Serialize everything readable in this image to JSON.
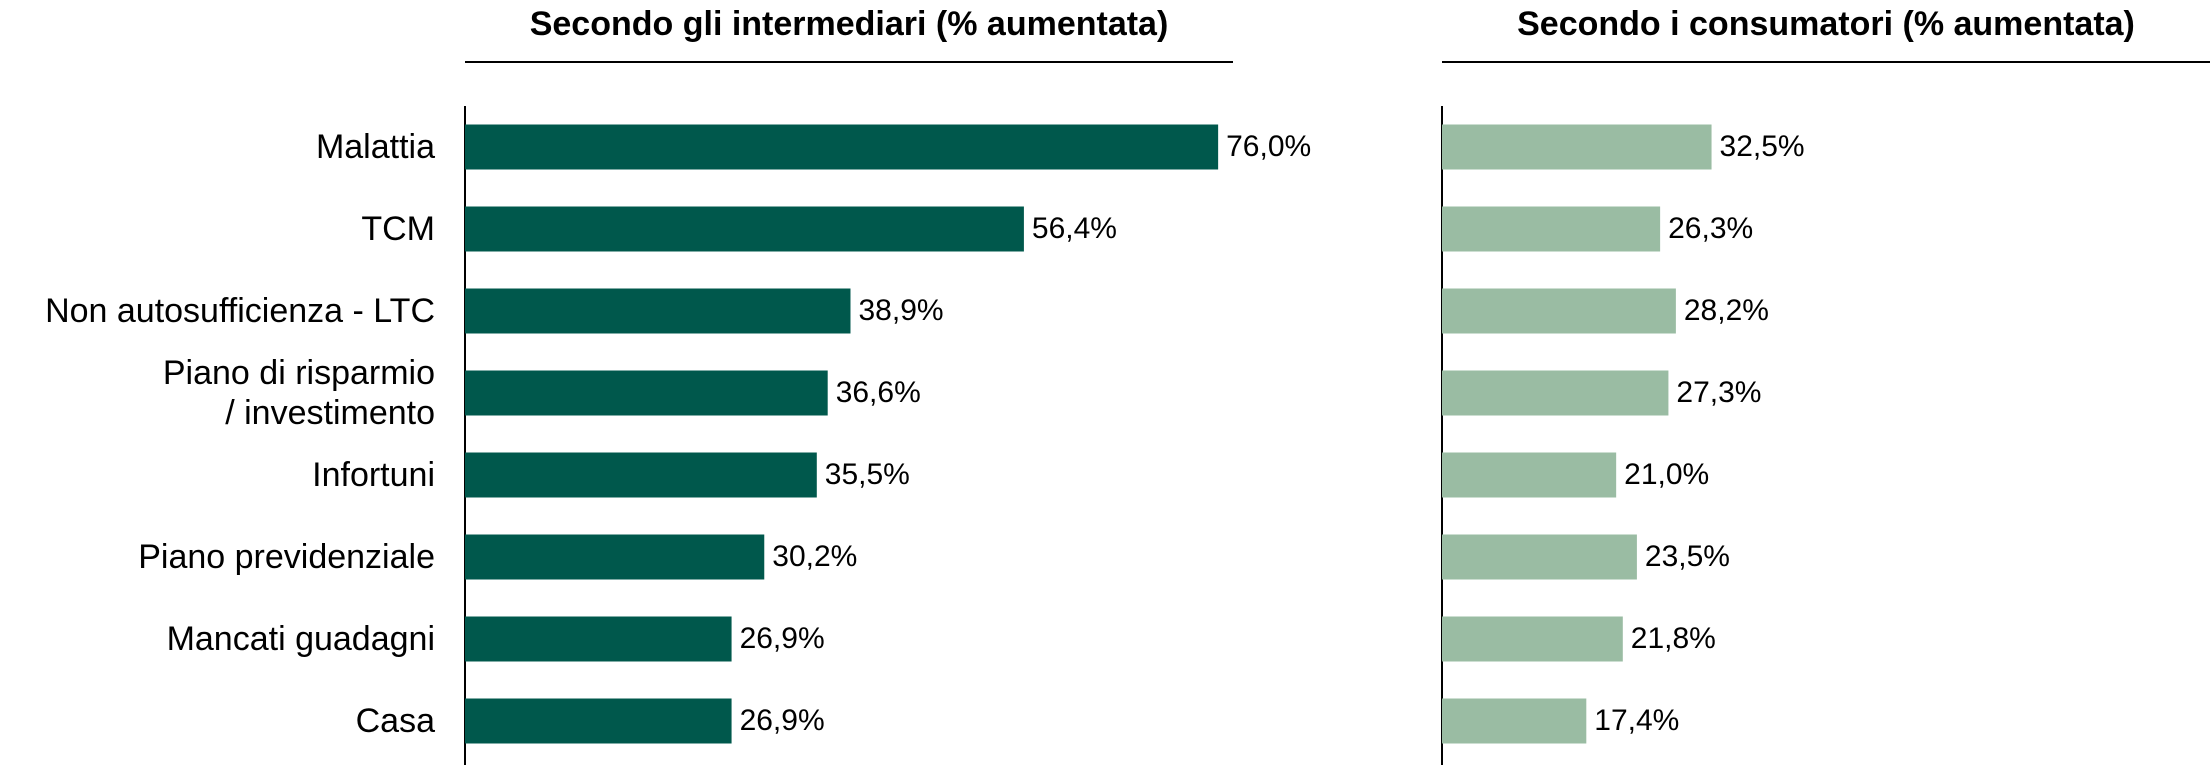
{
  "chart_data": [
    {
      "type": "bar",
      "orientation": "horizontal",
      "title": "Secondo gli intermediari (% aumentata)",
      "categories": [
        "Malattia",
        "TCM",
        "Non autosufficienza - LTC",
        "Piano di risparmio\n/ investimento",
        "Infortuni",
        "Piano previdenziale",
        "Mancati guadagni",
        "Casa"
      ],
      "values": [
        76.0,
        56.4,
        38.9,
        36.6,
        35.5,
        30.2,
        26.9,
        26.9
      ],
      "value_labels": [
        "76,0%",
        "56,4%",
        "38,9%",
        "36,6%",
        "35,5%",
        "30,2%",
        "26,9%",
        "26,9%"
      ],
      "color": "#00584c",
      "xlim": [
        0,
        77.5
      ]
    },
    {
      "type": "bar",
      "orientation": "horizontal",
      "title": "Secondo i consumatori (% aumentata)",
      "values": [
        32.5,
        26.3,
        28.2,
        27.3,
        21.0,
        23.5,
        21.8,
        17.4
      ],
      "value_labels": [
        "32,5%",
        "26,3%",
        "28,2%",
        "27,3%",
        "21,0%",
        "23,5%",
        "21,8%",
        "17,4%"
      ],
      "color": "#9abca3",
      "xlim": [
        0,
        92.6
      ]
    }
  ]
}
